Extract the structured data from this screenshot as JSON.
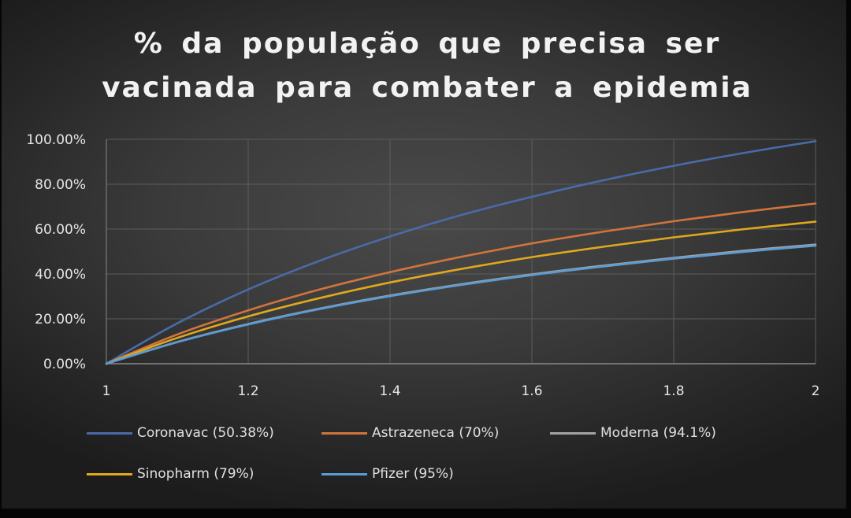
{
  "chart_data": {
    "type": "line",
    "title": "% da população  que precisa  ser\nvacinada  para  combater  a epidemia",
    "xlabel": "",
    "ylabel": "",
    "xlim": [
      1,
      2
    ],
    "ylim": [
      0,
      1
    ],
    "x_ticks": [
      "1",
      "1.2",
      "1.4",
      "1.6",
      "1.8",
      "2"
    ],
    "y_ticks": [
      "0.00%",
      "20.00%",
      "40.00%",
      "60.00%",
      "80.00%",
      "100.00%"
    ],
    "grid": true,
    "legend_position": "bottom",
    "x": [
      1.0,
      1.1,
      1.2,
      1.3,
      1.4,
      1.5,
      1.6,
      1.7,
      1.8,
      1.9,
      2.0
    ],
    "series": [
      {
        "name": "Coronavac (50.38%)",
        "color": "#4a6aa8",
        "values": [
          0.0,
          0.18,
          0.331,
          0.458,
          0.567,
          0.662,
          0.744,
          0.817,
          0.882,
          0.94,
          0.992
        ]
      },
      {
        "name": "Astrazeneca (70%)",
        "color": "#d0743c",
        "values": [
          0.0,
          0.13,
          0.238,
          0.33,
          0.408,
          0.476,
          0.536,
          0.588,
          0.635,
          0.677,
          0.714
        ]
      },
      {
        "name": "Moderna (94.1%)",
        "color": "#a3a3a3",
        "values": [
          0.0,
          0.097,
          0.177,
          0.245,
          0.304,
          0.354,
          0.398,
          0.437,
          0.472,
          0.504,
          0.531
        ]
      },
      {
        "name": "Sinopharm (79%)",
        "color": "#e0a81c",
        "values": [
          0.0,
          0.115,
          0.211,
          0.292,
          0.362,
          0.422,
          0.475,
          0.521,
          0.563,
          0.6,
          0.633
        ]
      },
      {
        "name": "Pfizer (95%)",
        "color": "#5b9bd5",
        "values": [
          0.0,
          0.096,
          0.175,
          0.243,
          0.301,
          0.351,
          0.395,
          0.433,
          0.468,
          0.499,
          0.526
        ]
      }
    ]
  }
}
